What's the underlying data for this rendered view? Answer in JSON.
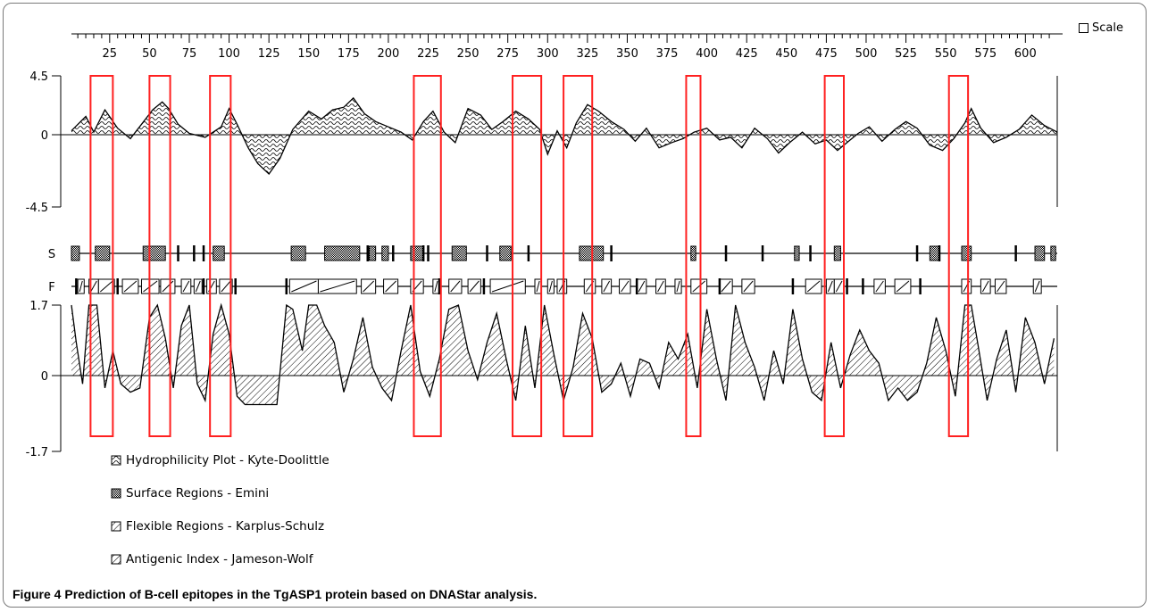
{
  "figure": {
    "scale_label": "Scale",
    "caption_label": "Figure 4",
    "caption_text": " Prediction of B-cell epitopes in the TgASP1 protein based on DNAStar analysis."
  },
  "chart_data": {
    "type": "line",
    "x_ticks": [
      25,
      50,
      75,
      100,
      125,
      150,
      175,
      200,
      225,
      250,
      275,
      300,
      325,
      350,
      375,
      400,
      425,
      450,
      475,
      500,
      525,
      550,
      575,
      600
    ],
    "xlim": [
      1,
      620
    ],
    "hydrophilicity_plot": {
      "name": "Hydrophilicity Plot - Kyte-Doolittle",
      "ylim": [
        -4.5,
        4.5
      ],
      "y_tick_labels": [
        "4.5",
        "0",
        "-4.5"
      ],
      "x": [
        1,
        10,
        15,
        22,
        30,
        38,
        45,
        52,
        58,
        62,
        68,
        75,
        85,
        95,
        100,
        105,
        112,
        118,
        125,
        132,
        140,
        150,
        158,
        165,
        172,
        178,
        185,
        192,
        200,
        208,
        215,
        222,
        228,
        235,
        242,
        250,
        258,
        265,
        272,
        280,
        288,
        295,
        300,
        306,
        312,
        318,
        325,
        332,
        340,
        348,
        355,
        362,
        370,
        378,
        385,
        392,
        400,
        408,
        415,
        422,
        430,
        438,
        445,
        452,
        460,
        468,
        475,
        482,
        488,
        495,
        502,
        510,
        518,
        525,
        532,
        540,
        548,
        555,
        562,
        566,
        572,
        580,
        588,
        596,
        604,
        612,
        620
      ],
      "y": [
        0.3,
        1.4,
        0.2,
        1.9,
        0.5,
        -0.3,
        0.8,
        1.9,
        2.5,
        2.0,
        0.8,
        0.1,
        -0.2,
        0.6,
        2.0,
        0.8,
        -1.0,
        -2.2,
        -3.0,
        -1.8,
        0.4,
        1.8,
        1.2,
        1.9,
        2.1,
        2.8,
        1.6,
        1.0,
        0.6,
        0.2,
        -0.4,
        1.0,
        1.8,
        0.2,
        -0.6,
        2.0,
        1.5,
        0.4,
        1.0,
        1.8,
        1.2,
        0.4,
        -1.5,
        0.3,
        -1.0,
        0.9,
        2.3,
        1.8,
        1.0,
        0.4,
        -0.5,
        0.5,
        -1.0,
        -0.6,
        -0.3,
        0.2,
        0.5,
        -0.4,
        -0.2,
        -1.0,
        0.5,
        -0.3,
        -1.4,
        -0.6,
        0.2,
        -0.7,
        -0.4,
        -1.2,
        -0.6,
        0.1,
        0.6,
        -0.5,
        0.4,
        1.0,
        0.5,
        -0.8,
        -1.2,
        -0.3,
        0.9,
        2.0,
        0.5,
        -0.6,
        -0.2,
        0.4,
        1.5,
        0.7,
        0.2
      ]
    },
    "surface_regions": {
      "name": "Surface Regions - Emini",
      "track_label": "S",
      "blocks": [
        [
          1,
          6
        ],
        [
          16,
          25
        ],
        [
          46,
          60
        ],
        [
          90,
          97
        ],
        [
          139,
          148
        ],
        [
          160,
          182
        ],
        [
          188,
          192
        ],
        [
          196,
          200
        ],
        [
          214,
          222
        ],
        [
          240,
          249
        ],
        [
          270,
          277
        ],
        [
          320,
          335
        ],
        [
          390,
          393
        ],
        [
          455,
          458
        ],
        [
          480,
          484
        ],
        [
          540,
          546
        ],
        [
          560,
          566
        ],
        [
          606,
          612
        ],
        [
          616,
          619
        ]
      ],
      "ticks": [
        68,
        78,
        84,
        187,
        203,
        222,
        225,
        262,
        288,
        340,
        412,
        435,
        465,
        532,
        546,
        594
      ]
    },
    "flexible_regions": {
      "name": "Flexible Regions - Karplus-Schulz",
      "track_label": "F",
      "blocks": [
        [
          5,
          9
        ],
        [
          12,
          18
        ],
        [
          18,
          28
        ],
        [
          33,
          43
        ],
        [
          45,
          56
        ],
        [
          57,
          66
        ],
        [
          70,
          76
        ],
        [
          78,
          83
        ],
        [
          86,
          92
        ],
        [
          94,
          102
        ],
        [
          138,
          156
        ],
        [
          156,
          180
        ],
        [
          183,
          192
        ],
        [
          197,
          206
        ],
        [
          214,
          222
        ],
        [
          228,
          232
        ],
        [
          238,
          246
        ],
        [
          250,
          258
        ],
        [
          264,
          286
        ],
        [
          292,
          296
        ],
        [
          300,
          304
        ],
        [
          306,
          312
        ],
        [
          323,
          330
        ],
        [
          334,
          340
        ],
        [
          345,
          352
        ],
        [
          356,
          362
        ],
        [
          368,
          374
        ],
        [
          380,
          384
        ],
        [
          390,
          400
        ],
        [
          408,
          416
        ],
        [
          422,
          430
        ],
        [
          462,
          472
        ],
        [
          475,
          480
        ],
        [
          480,
          486
        ],
        [
          505,
          512
        ],
        [
          518,
          528
        ],
        [
          560,
          566
        ],
        [
          572,
          578
        ],
        [
          581,
          588
        ],
        [
          605,
          610
        ]
      ],
      "ticks": [
        4,
        30,
        84,
        104,
        136,
        232,
        260,
        310,
        356,
        408,
        454,
        488,
        498,
        534
      ]
    },
    "antigenic_index": {
      "name": "Antigenic Index - Jameson-Wolf",
      "ylim": [
        -1.7,
        1.7
      ],
      "y_tick_labels": [
        "1.7",
        "0",
        "-1.7"
      ],
      "x": [
        1,
        4,
        8,
        12,
        17,
        22,
        27,
        32,
        38,
        44,
        50,
        55,
        60,
        65,
        70,
        75,
        80,
        85,
        90,
        95,
        100,
        105,
        110,
        120,
        130,
        136,
        140,
        146,
        150,
        155,
        160,
        166,
        172,
        178,
        184,
        190,
        196,
        202,
        208,
        214,
        220,
        226,
        232,
        238,
        244,
        250,
        256,
        262,
        268,
        274,
        280,
        286,
        292,
        298,
        304,
        310,
        316,
        322,
        328,
        334,
        340,
        346,
        352,
        358,
        364,
        370,
        376,
        382,
        388,
        394,
        400,
        406,
        412,
        418,
        424,
        430,
        436,
        442,
        448,
        454,
        460,
        466,
        472,
        478,
        484,
        490,
        496,
        502,
        508,
        514,
        520,
        526,
        532,
        538,
        544,
        550,
        556,
        562,
        566,
        570,
        576,
        582,
        588,
        594,
        600,
        606,
        612,
        618
      ],
      "y": [
        1.7,
        0.8,
        -0.2,
        1.7,
        1.7,
        -0.3,
        0.6,
        -0.2,
        -0.4,
        -0.3,
        1.4,
        1.7,
        0.9,
        -0.3,
        1.2,
        1.7,
        -0.2,
        -0.6,
        1.0,
        1.7,
        1.0,
        -0.5,
        -0.7,
        -0.7,
        -0.7,
        1.7,
        1.6,
        0.6,
        1.7,
        1.7,
        1.2,
        0.8,
        -0.4,
        0.4,
        1.4,
        0.2,
        -0.3,
        -0.6,
        0.6,
        1.7,
        0.1,
        -0.5,
        0.4,
        1.6,
        1.7,
        0.6,
        -0.1,
        0.8,
        1.5,
        0.4,
        -0.6,
        1.2,
        -0.3,
        1.7,
        0.5,
        -0.6,
        0.2,
        1.5,
        0.9,
        -0.4,
        -0.2,
        0.3,
        -0.5,
        0.4,
        0.3,
        -0.3,
        0.8,
        0.4,
        1.0,
        -0.3,
        1.6,
        0.4,
        -0.6,
        1.7,
        0.8,
        0.2,
        -0.6,
        0.6,
        -0.2,
        1.6,
        0.4,
        -0.4,
        -0.6,
        0.8,
        -0.3,
        0.5,
        1.1,
        0.6,
        0.3,
        -0.6,
        -0.3,
        -0.6,
        -0.4,
        0.3,
        1.4,
        0.6,
        -0.5,
        1.7,
        1.7,
        0.8,
        -0.6,
        0.4,
        1.1,
        -0.4,
        1.4,
        0.8,
        -0.2,
        0.9
      ]
    },
    "highlight_windows": [
      [
        13,
        27
      ],
      [
        50,
        63
      ],
      [
        88,
        101
      ],
      [
        216,
        233
      ],
      [
        278,
        296
      ],
      [
        310,
        328
      ],
      [
        387,
        396
      ],
      [
        474,
        486
      ],
      [
        552,
        564
      ]
    ],
    "legend": [
      "Hydrophilicity Plot - Kyte-Doolittle",
      "Surface Regions - Emini",
      "Flexible Regions - Karplus-Schulz",
      "Antigenic Index - Jameson-Wolf"
    ],
    "colors": {
      "line": "#000000",
      "highlight": "#ff2020",
      "surface_fill": "#8a8a8a"
    }
  }
}
